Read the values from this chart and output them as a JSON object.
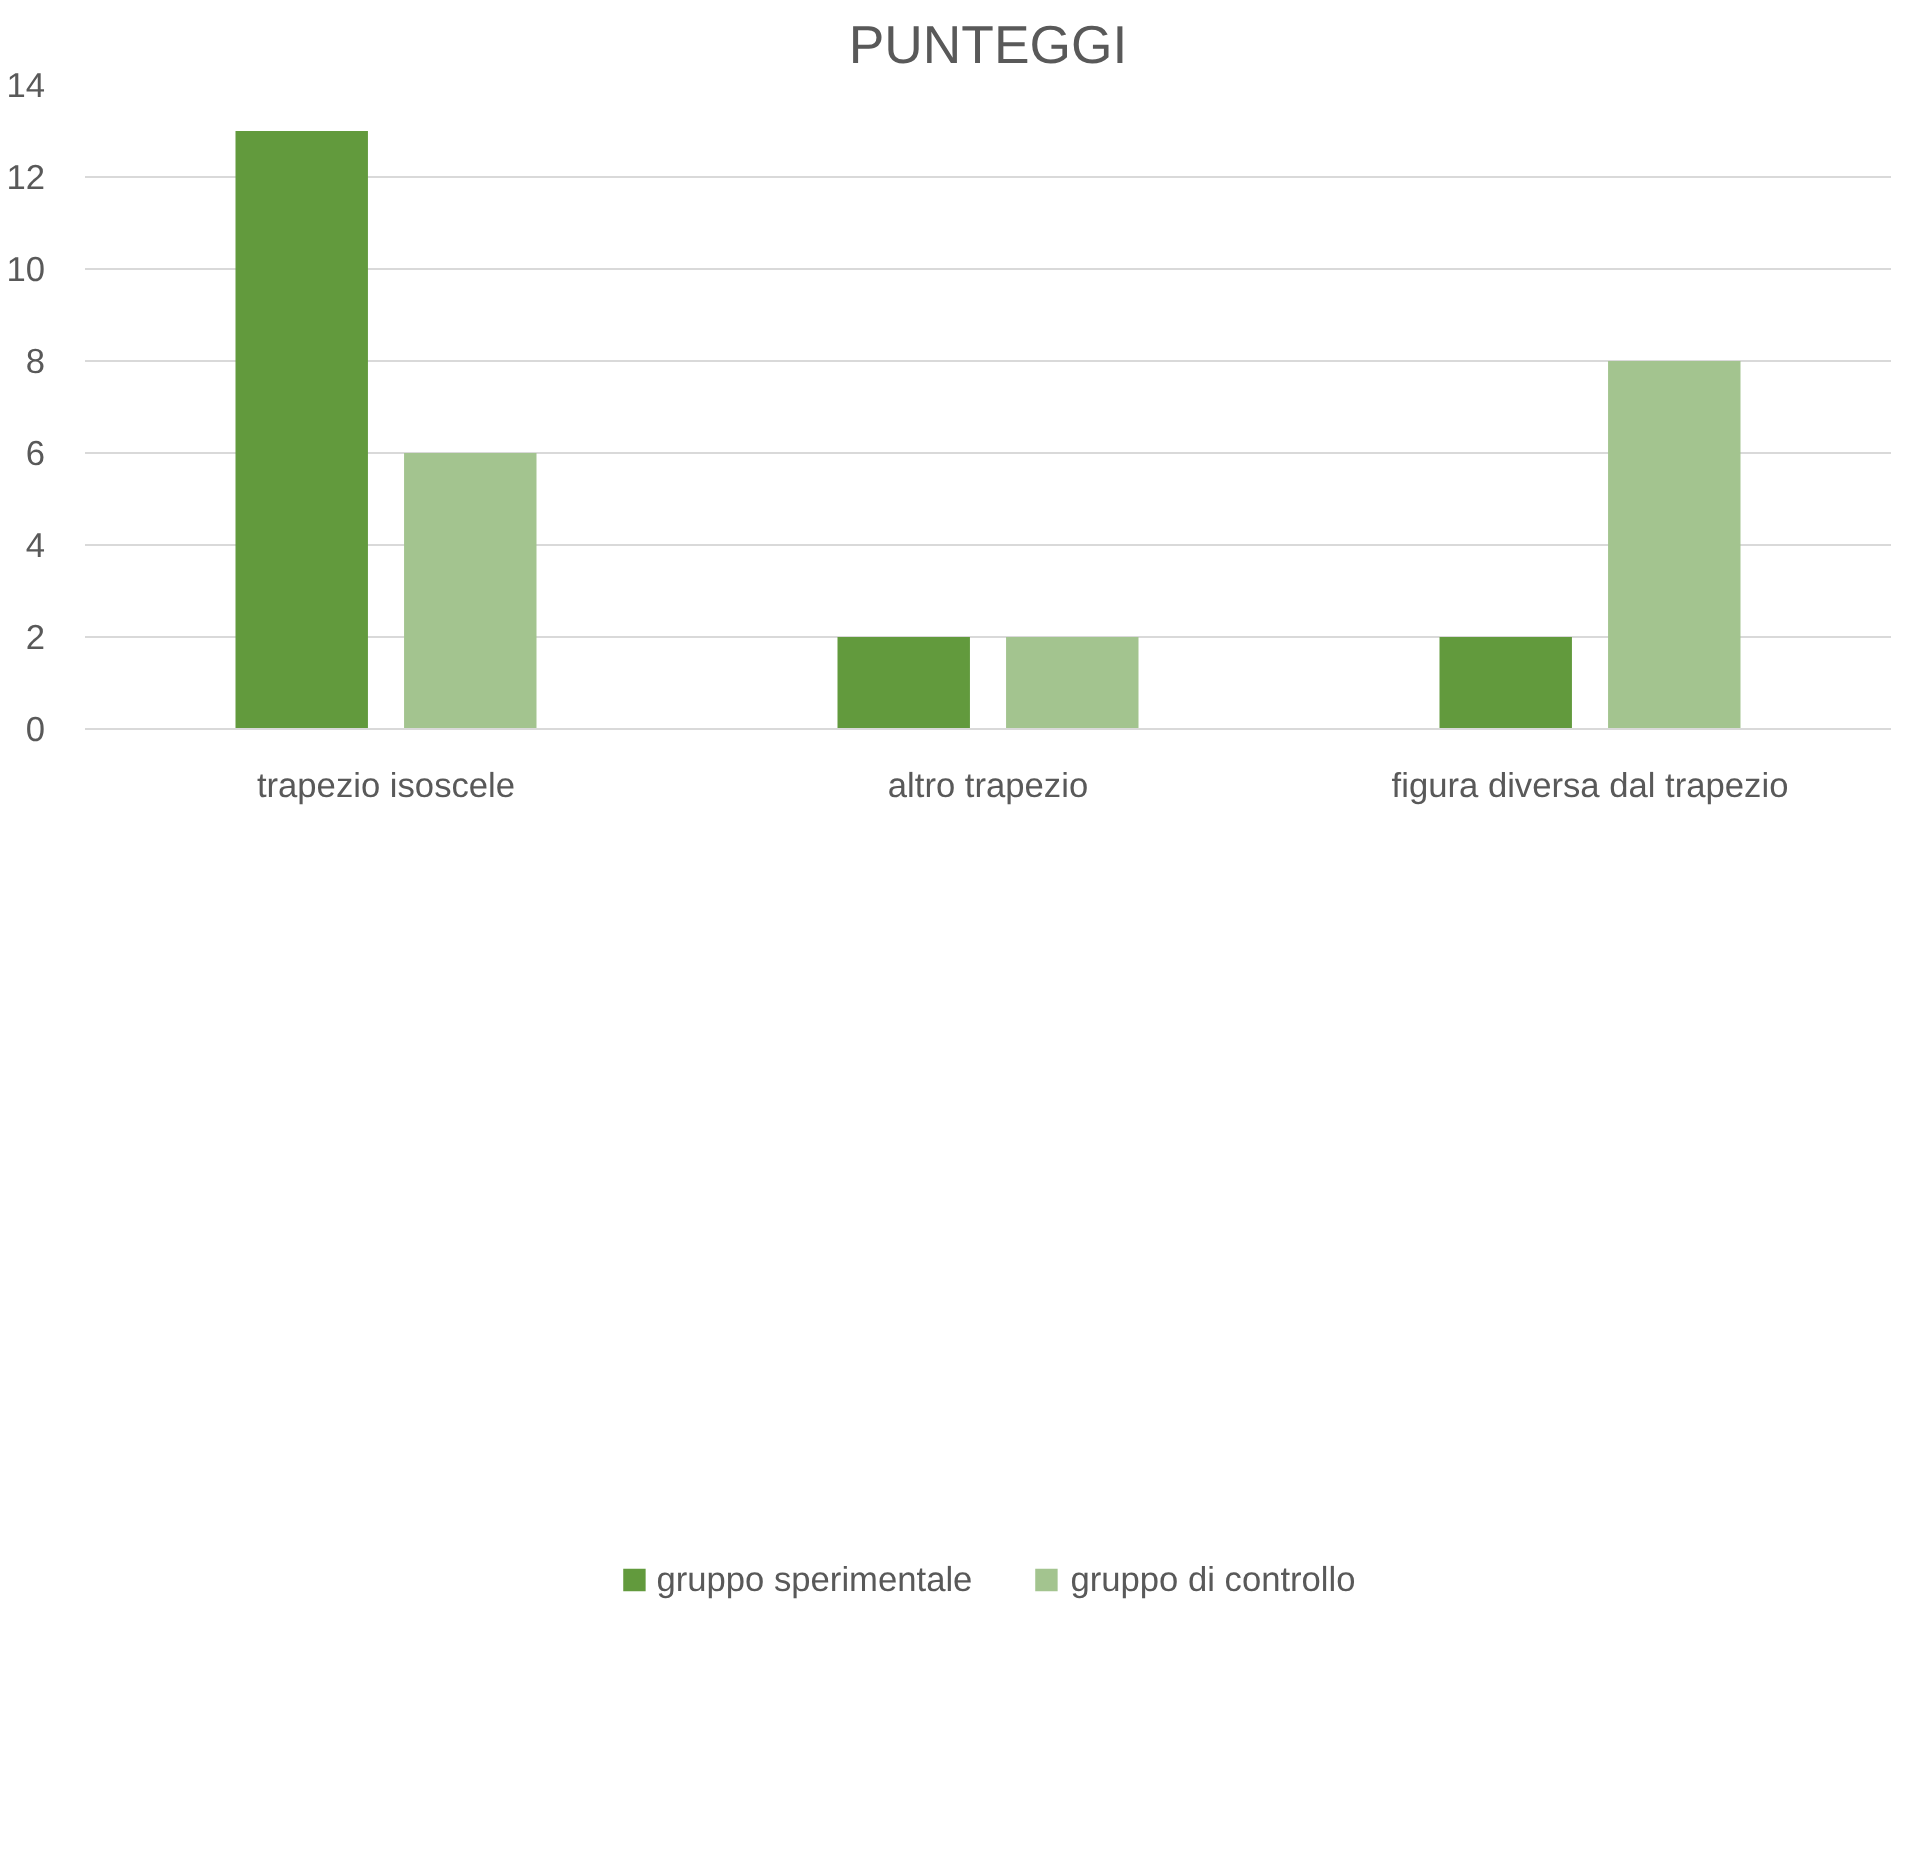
{
  "chart_data": {
    "type": "bar",
    "title": "PUNTEGGI",
    "categories": [
      "trapezio isoscele",
      "altro trapezio",
      "figura diversa dal trapezio"
    ],
    "series": [
      {
        "name": "gruppo sperimentale",
        "color": "#629a3d",
        "values": [
          13,
          2,
          2
        ]
      },
      {
        "name": "gruppo di controllo",
        "color": "#a3c48f",
        "values": [
          6,
          2,
          8
        ]
      }
    ],
    "ylim": [
      0,
      14
    ],
    "yticks": [
      0,
      2,
      4,
      6,
      8,
      10,
      12,
      14
    ],
    "grid": "y",
    "legend": "bottom"
  }
}
